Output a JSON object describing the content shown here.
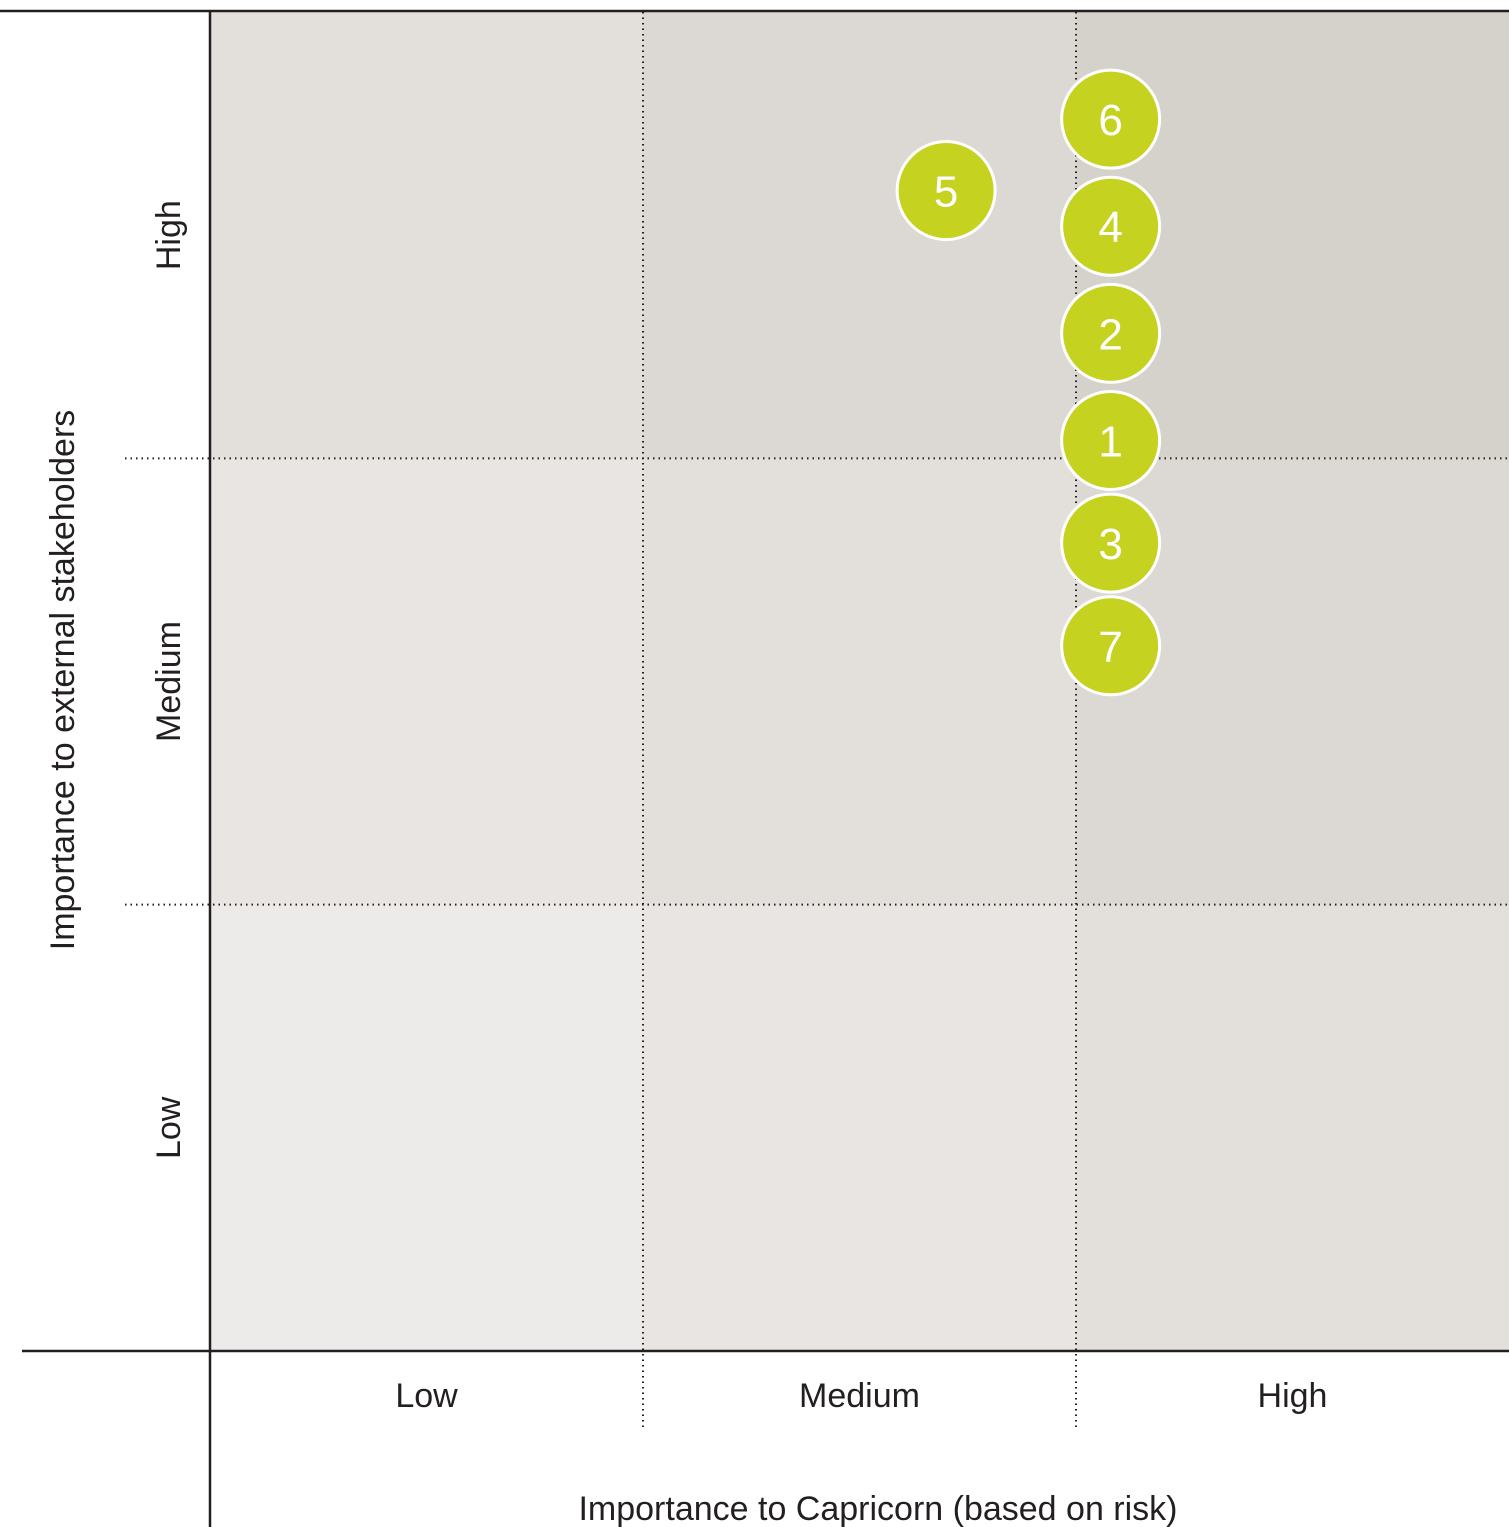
{
  "chart_data": {
    "type": "scatter",
    "title": "",
    "xlabel": "Importance to Capricorn (based on risk)",
    "ylabel": "Importance to external stakeholders",
    "x_categories": [
      "Low",
      "Medium",
      "High"
    ],
    "y_categories": [
      "Low",
      "Medium",
      "High"
    ],
    "xlim": [
      0,
      3
    ],
    "ylim": [
      0,
      3
    ],
    "grid": true,
    "cell_colors": [
      [
        "#ecebe9",
        "#e8e5e2",
        "#e3dfdb"
      ],
      [
        "#e8e5e2",
        "#e3dfdb",
        "#dcd8d3"
      ],
      [
        "#e3dfdb",
        "#dcd8d3",
        "#d5d1cb"
      ]
    ],
    "marker_color": "#c5d21f",
    "points": [
      {
        "label": "6",
        "x": 2.08,
        "y": 2.76
      },
      {
        "label": "5",
        "x": 1.7,
        "y": 2.6
      },
      {
        "label": "4",
        "x": 2.08,
        "y": 2.52
      },
      {
        "label": "2",
        "x": 2.08,
        "y": 2.28
      },
      {
        "label": "1",
        "x": 2.08,
        "y": 2.04
      },
      {
        "label": "3",
        "x": 2.08,
        "y": 1.81
      },
      {
        "label": "7",
        "x": 2.08,
        "y": 1.58
      }
    ]
  }
}
